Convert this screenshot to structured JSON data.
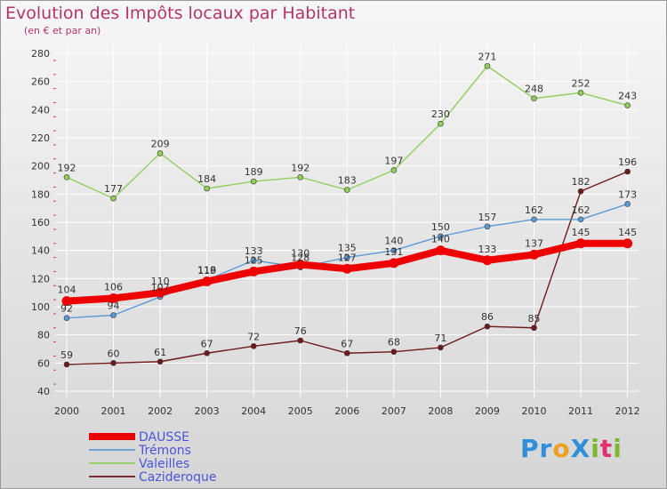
{
  "title": "Evolution des Impôts locaux par Habitant",
  "subtitle": "(en € et par an)",
  "logo": {
    "text": "Proxiti",
    "letters": [
      {
        "ch": "P",
        "color": "#2f8fd8"
      },
      {
        "ch": "r",
        "color": "#2f8fd8"
      },
      {
        "ch": "o",
        "color": "#f0a020"
      },
      {
        "ch": "X",
        "color": "#2f8fd8"
      },
      {
        "ch": "i",
        "color": "#7cb82f"
      },
      {
        "ch": "t",
        "color": "#e03070"
      },
      {
        "ch": "i",
        "color": "#7cb82f"
      }
    ]
  },
  "chart_data": {
    "type": "line",
    "x": [
      "2000",
      "2001",
      "2002",
      "2003",
      "2004",
      "2005",
      "2006",
      "2007",
      "2008",
      "2009",
      "2010",
      "2011",
      "2012"
    ],
    "ylim": [
      40,
      280
    ],
    "yticks": [
      40,
      60,
      80,
      100,
      120,
      140,
      160,
      180,
      200,
      220,
      240,
      260,
      280
    ],
    "grid": true,
    "legend_position": "bottom-left",
    "series": [
      {
        "name": "Cazideroque",
        "color": "#6e1a1a",
        "values": [
          59,
          60,
          61,
          67,
          72,
          76,
          67,
          68,
          71,
          86,
          85,
          182,
          196
        ]
      },
      {
        "name": "Valeilles",
        "color": "#8fcf5a",
        "values": [
          192,
          177,
          209,
          184,
          189,
          192,
          183,
          197,
          230,
          271,
          248,
          252,
          243
        ]
      },
      {
        "name": "Trémons",
        "color": "#5b9bd5",
        "values": [
          92,
          94,
          107,
          119,
          133,
          128,
          135,
          140,
          150,
          157,
          162,
          162,
          173
        ]
      },
      {
        "name": "DAUSSE",
        "color": "#ee0000",
        "values": [
          104,
          106,
          110,
          118,
          125,
          130,
          127,
          131,
          140,
          133,
          137,
          145,
          145
        ]
      }
    ]
  }
}
